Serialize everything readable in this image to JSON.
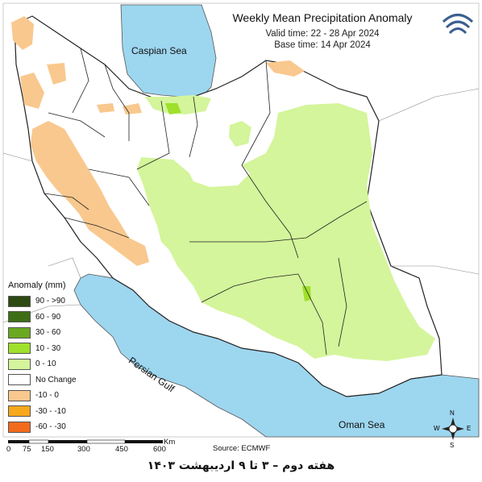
{
  "header": {
    "title": "Weekly Mean Precipitation Anomaly",
    "valid_time": "Valid time: 22 - 28 Apr 2024",
    "base_time": "Base time: 14 Apr 2024"
  },
  "labels": {
    "caspian": "Caspian Sea",
    "persian_gulf": "Persian Gulf",
    "oman_sea": "Oman Sea"
  },
  "legend": {
    "title": "Anomaly (mm)",
    "items": [
      {
        "label": "90 - >90",
        "color": "#2d4a12"
      },
      {
        "label": "60 - 90",
        "color": "#3d6e17"
      },
      {
        "label": "30 - 60",
        "color": "#6aa820"
      },
      {
        "label": "10 - 30",
        "color": "#9fe02c"
      },
      {
        "label": "0 - 10",
        "color": "#d4f59b"
      },
      {
        "label": "No Change",
        "color": "#ffffff"
      },
      {
        "label": "-10 - 0",
        "color": "#f9c88e"
      },
      {
        "label": "-30 - -10",
        "color": "#f7a81b"
      },
      {
        "label": "-60 - -30",
        "color": "#f26b1d"
      }
    ]
  },
  "scale": {
    "unit": "Km",
    "ticks": [
      "0",
      "75",
      "150",
      "300",
      "450",
      "600"
    ]
  },
  "source": "Source: ECMWF",
  "compass": {
    "n": "N",
    "s": "S",
    "e": "E",
    "w": "W"
  },
  "footer": "هفته دوم – ۳ تا ۹ اردیبهشت ۱۴۰۳",
  "colors": {
    "water": "#9dd6ef",
    "land_outside": "#ffffff",
    "border": "#222222"
  }
}
